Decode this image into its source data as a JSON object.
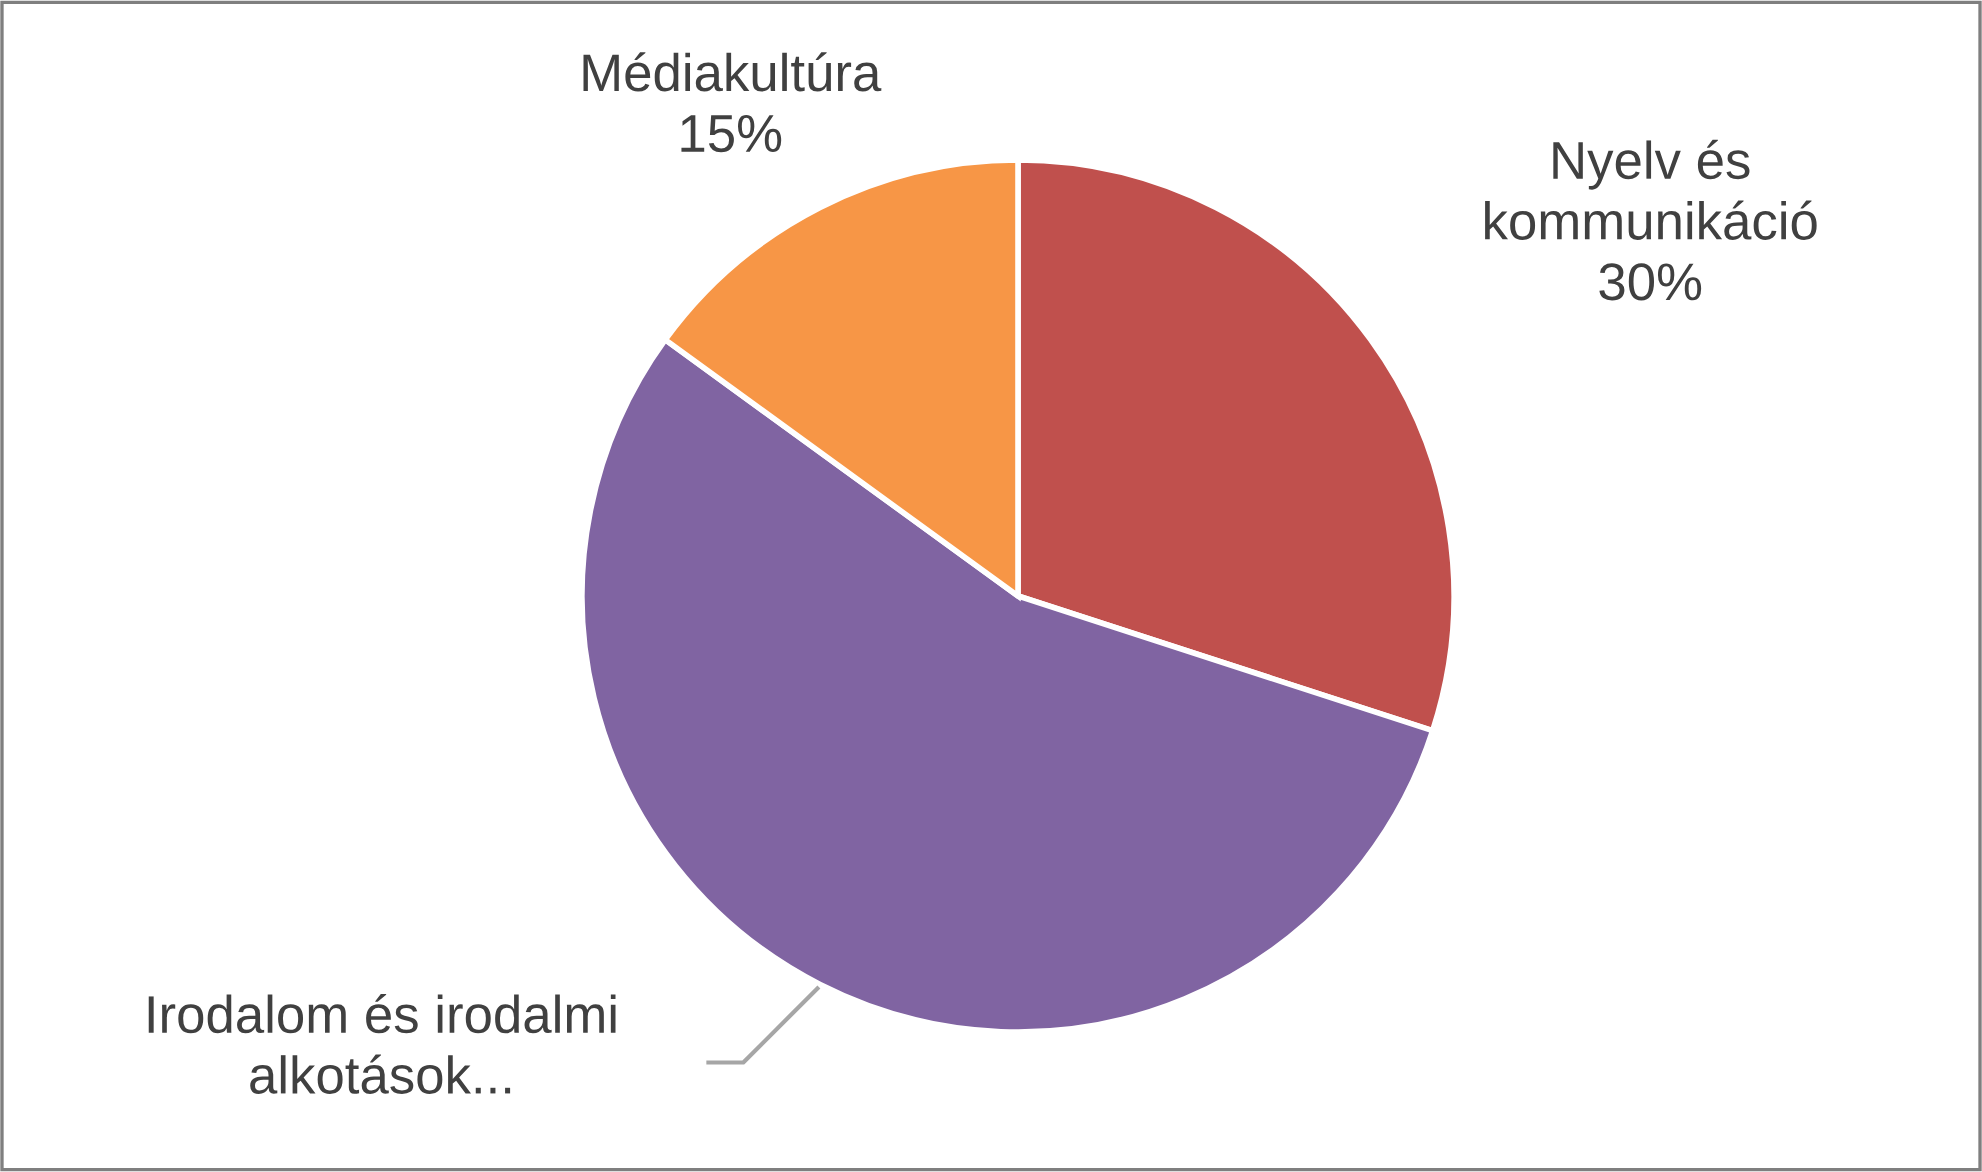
{
  "chart_data": {
    "type": "pie",
    "categories": [
      "Nyelv és kommunikáció",
      "Irodalom és irodalmi alkotások...",
      "Médiakultúra"
    ],
    "values": [
      30,
      55,
      15
    ],
    "value_labels": [
      "30%",
      null,
      "15%"
    ],
    "colors": [
      "#c0504d",
      "#8064a2",
      "#f79646"
    ],
    "legend": false
  }
}
